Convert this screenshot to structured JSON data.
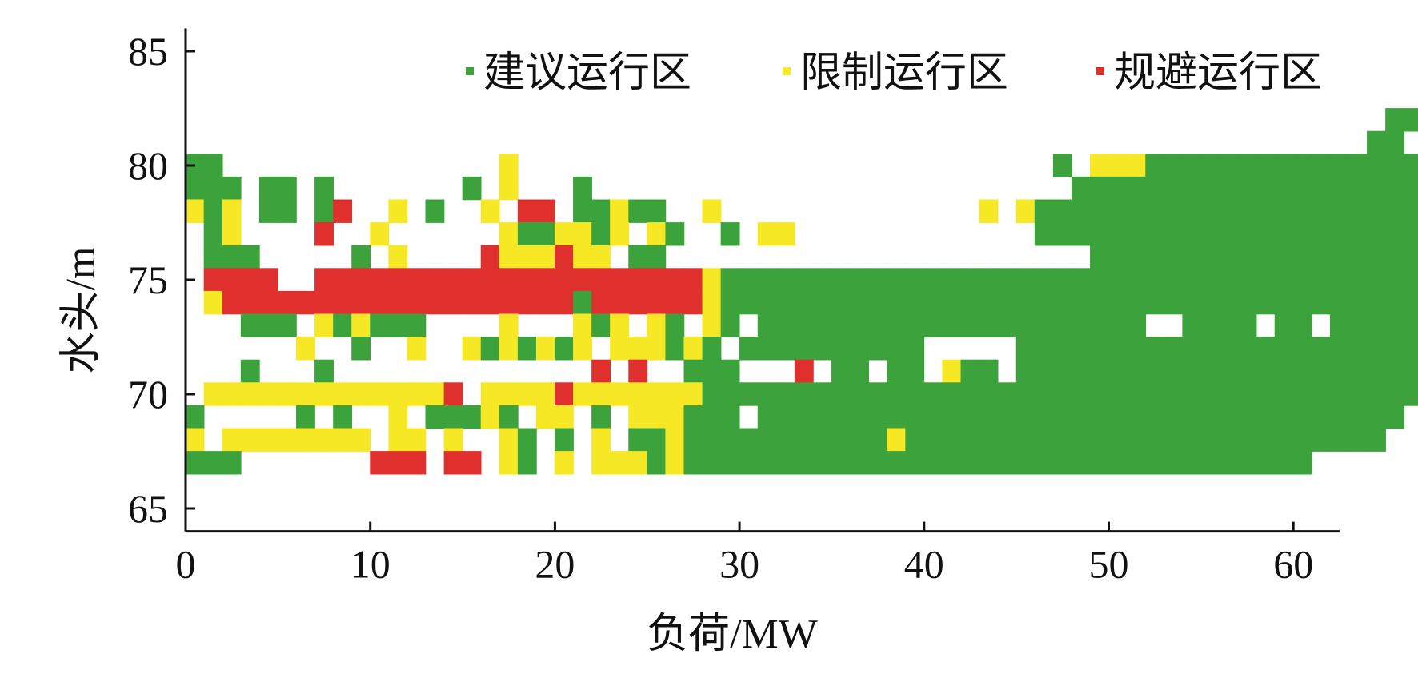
{
  "chart_data": {
    "type": "heatmap",
    "xlabel": "负荷/MW",
    "ylabel": "水头/m",
    "xlim": [
      0,
      62.5
    ],
    "ylim": [
      64,
      86
    ],
    "x_ticks": [
      0,
      10,
      20,
      30,
      40,
      50,
      60
    ],
    "y_ticks": [
      65,
      70,
      75,
      80,
      85
    ],
    "cell_size": {
      "load_mw": 1,
      "head_m": 1
    },
    "legend_position": "top-right",
    "legend": [
      {
        "key": "G",
        "name": "建议运行区",
        "color": "#3ca33c"
      },
      {
        "key": "Y",
        "name": "限制运行区",
        "color": "#f7e825"
      },
      {
        "key": "R",
        "name": "规避运行区",
        "color": "#e0302e"
      }
    ],
    "grid": false,
    "rows": [
      {
        "head": 82,
        "start_load": 0,
        "cells": ".................................................................GGGGG"
      },
      {
        "head": 81,
        "start_load": 0,
        "cells": "................................................................GG.GGGGG"
      },
      {
        "head": 80,
        "start_load": 0,
        "cells": "GG...............Y.............................G.YYYGGGGGGGGGGGGGGGGGG"
      },
      {
        "head": 79,
        "start_load": 0,
        "cells": "GGG.GG.G.......G.Y...G..........................GGGGGGGGGGGGGGGGGGGGG"
      },
      {
        "head": 78,
        "start_load": 0,
        "cells": "YGY.GG.GR..Y.G..Y.RR.GGYGG..Y..............Y.YGGGGGGGGGGGGGGGGGGGGGGGG"
      },
      {
        "head": 77,
        "start_load": 0,
        "cells": ".GY....R..Y......YGGYYGY.YG..G.YY.............GGGGGGGGGGGGGGGGGGGGGGGGG"
      },
      {
        "head": 76,
        "start_load": 0,
        "cells": ".GGG.....G.Y....RYYYRYY.GG.......................GGGGGGGGGGGGGGGGGGGGG"
      },
      {
        "head": 75,
        "start_load": 0,
        "cells": ".RRRR..RRRRRRRRRRRRRRRRRRRRRYGGGGGGGGGGGGGGGGGGGGGGGGGGGGGGGGGGGGGGGGGG"
      },
      {
        "head": 74,
        "start_load": 0,
        "cells": ".YRRRRRRRRRRRRRRRRRRRGRRRRRRYGGGGGGGGGGGGGGGGGGGGGGGGGGGGGGGGGGGGGGGGGG"
      },
      {
        "head": 73,
        "start_load": 0,
        "cells": "...GGG.YGYGGG....Y...YGY.YG.YG.GGGGGGGGGGGGGGGGGGGGG..GGGG.GG.GGGGGGGG"
      },
      {
        "head": 72,
        "start_load": 0,
        "cells": "......Y..G..Y..YGYGYGY.YYYGYG.GGGGGGGGGG.....GGGGGGGGGGGGGGGGGGGGGGGG"
      },
      {
        "head": 71,
        "start_load": 0,
        "cells": "...G...G..............R.R..GGG...R.GG.GG.YGG.GGGGGGGGGGGGGGGGGGGGGGGG"
      },
      {
        "head": 70,
        "start_load": 0,
        "cells": ".YYYYYYYYYYYYYR.YYYYRYYYYYYYGGGGGGGGGGGGGGGGGGGGGGGGGGGGGGGGGGGGGGGGGG"
      },
      {
        "head": 69,
        "start_load": 0,
        "cells": "G.....G.G..Y.GGGYG.YY.G.YYYGGG.GGGGGGGGGGGGGGGGGGGGGGGGGGGGGGGGGGG"
      },
      {
        "head": 68,
        "start_load": 0,
        "cells": "Y.YYYYYYYY.YY.Y..YG.G.Y.GGYGGGGGGGGGGGYGGGGGGGGGGGGGGGGGGGGGGGGGG"
      },
      {
        "head": 67,
        "start_load": 0,
        "cells": "GGG.......RRR.RR.YG.Y.YYYGYGGGGGGGGGGGGGGGGGGGGGGGGGGGGGGGGGG"
      }
    ]
  }
}
